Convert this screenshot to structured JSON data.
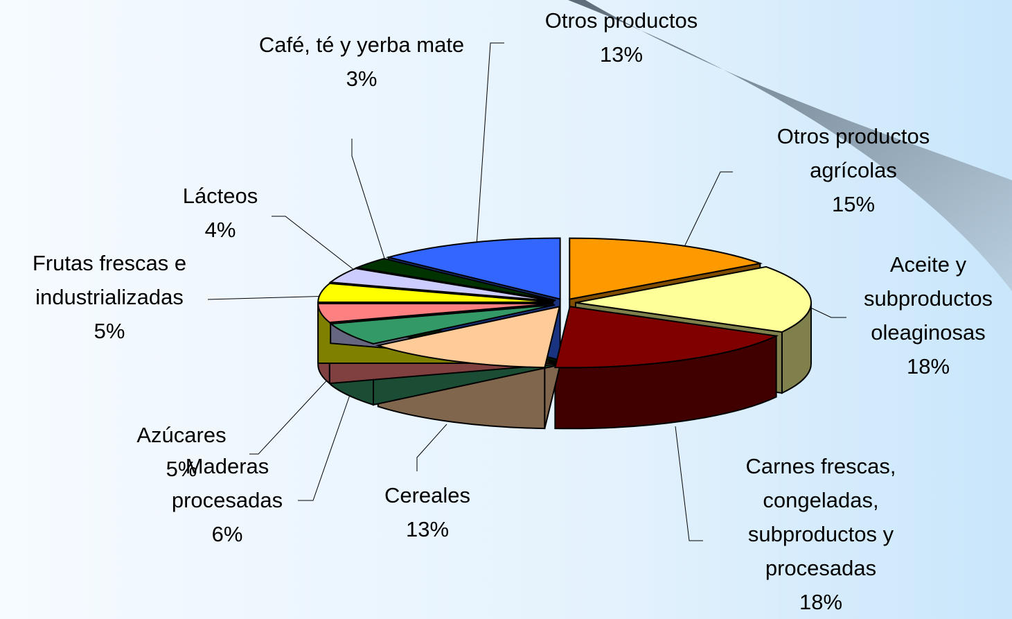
{
  "chart_data": {
    "type": "pie",
    "three_d": true,
    "categories": [
      "Otros productos agrícolas",
      "Aceite y subproductos oleaginosas",
      "Carnes frescas, congeladas, subproductos y procesadas",
      "Cereales",
      "Maderas procesadas",
      "Azúcares",
      "Frutas frescas e industrializadas",
      "Lácteos",
      "Café, té y yerba mate",
      "Otros productos"
    ],
    "values": [
      15,
      18,
      18,
      13,
      6,
      5,
      5,
      4,
      3,
      13
    ],
    "value_labels": [
      "15%",
      "18%",
      "18%",
      "13%",
      "6%",
      "5%",
      "5%",
      "4%",
      "3%",
      "13%"
    ],
    "colors": [
      "#ff9900",
      "#ffff99",
      "#800000",
      "#ffcc99",
      "#339966",
      "#ff8080",
      "#ffff00",
      "#ccccff",
      "#003300",
      "#3366ff"
    ]
  }
}
